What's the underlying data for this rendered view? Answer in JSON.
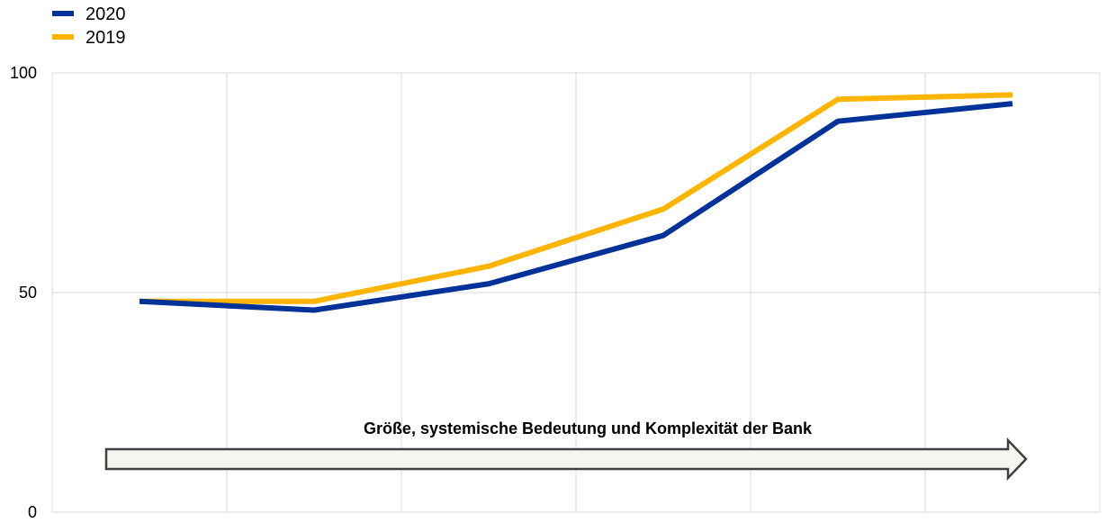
{
  "chart_data": {
    "type": "line",
    "x": [
      1,
      2,
      3,
      4,
      5,
      6
    ],
    "series": [
      {
        "name": "2020",
        "color": "#003299",
        "values": [
          48,
          46,
          52,
          63,
          89,
          93
        ]
      },
      {
        "name": "2019",
        "color": "#FFB400",
        "values": [
          48,
          48,
          56,
          69,
          94,
          95
        ]
      }
    ],
    "ylim": [
      0,
      100
    ],
    "yticks": [
      0,
      50,
      100
    ],
    "xlim": [
      0.5,
      6.5
    ],
    "xgrid": true,
    "ygrid": true,
    "legend_position": "top-left",
    "annotation": "Größe, systemische Bedeutung und Komplexität der Bank"
  }
}
